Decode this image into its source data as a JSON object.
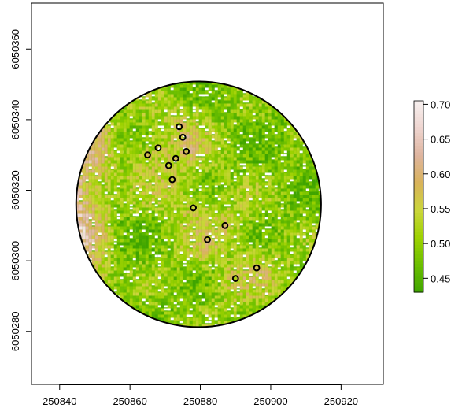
{
  "chart_data": {
    "type": "heatmap",
    "title": "",
    "xlabel": "",
    "ylabel": "",
    "xlim": [
      250832,
      250932
    ],
    "ylim": [
      6050265,
      6050373
    ],
    "x_ticks": [
      250840,
      250860,
      250880,
      250900,
      250920
    ],
    "y_ticks": [
      6050280,
      6050300,
      6050320,
      6050340,
      6050360
    ],
    "circle": {
      "center": [
        250879.5,
        6050316
      ],
      "radius": 34.8
    },
    "grid": false,
    "legend": {
      "position": "right",
      "min": 0.43,
      "max": 0.705,
      "ticks": [
        0.45,
        0.5,
        0.55,
        0.6,
        0.65,
        0.7
      ],
      "tick_labels": [
        "0.45",
        "0.50",
        "0.55",
        "0.60",
        "0.65",
        "0.70"
      ],
      "colors": [
        "#3fa400",
        "#6cbf00",
        "#9dd200",
        "#cbd63a",
        "#d9b35a",
        "#deb49e",
        "#eed4cf",
        "#f6f0ef"
      ]
    },
    "points": [
      {
        "x": 250874,
        "y": 6050338
      },
      {
        "x": 250875,
        "y": 6050335
      },
      {
        "x": 250876,
        "y": 6050331
      },
      {
        "x": 250868,
        "y": 6050332
      },
      {
        "x": 250865,
        "y": 6050330
      },
      {
        "x": 250873,
        "y": 6050329
      },
      {
        "x": 250871,
        "y": 6050327
      },
      {
        "x": 250872,
        "y": 6050323
      },
      {
        "x": 250878,
        "y": 6050315
      },
      {
        "x": 250887,
        "y": 6050310
      },
      {
        "x": 250882,
        "y": 6050306
      },
      {
        "x": 250896,
        "y": 6050298
      },
      {
        "x": 250890,
        "y": 6050295
      }
    ]
  }
}
